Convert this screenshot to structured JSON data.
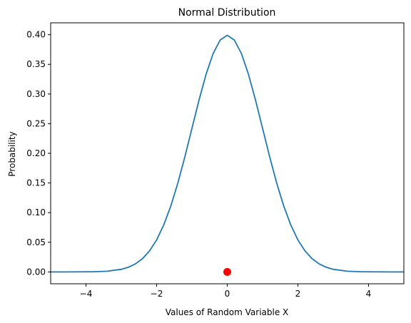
{
  "chart_data": {
    "type": "line",
    "title": "Normal Distribution",
    "xlabel": "Values of Random Variable X",
    "ylabel": "Probability",
    "xlim": [
      -5,
      5
    ],
    "ylim": [
      -0.02,
      0.42
    ],
    "xticks": [
      -4,
      -2,
      0,
      2,
      4
    ],
    "xtick_labels": [
      "−4",
      "−2",
      "0",
      "2",
      "4"
    ],
    "yticks": [
      0.0,
      0.05,
      0.1,
      0.15,
      0.2,
      0.25,
      0.3,
      0.35,
      0.4
    ],
    "ytick_labels": [
      "0.00",
      "0.05",
      "0.10",
      "0.15",
      "0.20",
      "0.25",
      "0.30",
      "0.35",
      "0.40"
    ],
    "grid": false,
    "series": [
      {
        "type": "line",
        "color": "#1f77b4",
        "x": [
          -5.0,
          -4.6,
          -4.2,
          -3.8,
          -3.4,
          -3.0,
          -2.8,
          -2.6,
          -2.4,
          -2.2,
          -2.0,
          -1.8,
          -1.6,
          -1.4,
          -1.2,
          -1.0,
          -0.8,
          -0.6,
          -0.4,
          -0.2,
          0.0,
          0.2,
          0.4,
          0.6,
          0.8,
          1.0,
          1.2,
          1.4,
          1.6,
          1.8,
          2.0,
          2.2,
          2.4,
          2.6,
          2.8,
          3.0,
          3.4,
          3.8,
          4.2,
          4.6,
          5.0
        ],
        "y": [
          0.0,
          0.0,
          0.0001,
          0.0003,
          0.0012,
          0.0044,
          0.0079,
          0.0136,
          0.0224,
          0.0355,
          0.054,
          0.079,
          0.1109,
          0.1497,
          0.1942,
          0.242,
          0.2897,
          0.3332,
          0.3683,
          0.391,
          0.3989,
          0.391,
          0.3683,
          0.3332,
          0.2897,
          0.242,
          0.1942,
          0.1497,
          0.1109,
          0.079,
          0.054,
          0.0355,
          0.0224,
          0.0136,
          0.0079,
          0.0044,
          0.0012,
          0.0003,
          0.0001,
          0.0,
          0.0
        ]
      },
      {
        "type": "scatter",
        "color": "#ff0000",
        "x": [
          0.0
        ],
        "y": [
          0.0
        ]
      }
    ]
  }
}
